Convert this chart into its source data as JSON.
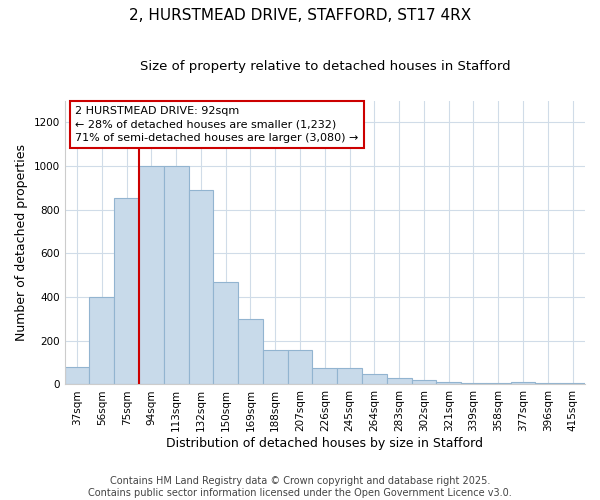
{
  "title": "2, HURSTMEAD DRIVE, STAFFORD, ST17 4RX",
  "subtitle": "Size of property relative to detached houses in Stafford",
  "xlabel": "Distribution of detached houses by size in Stafford",
  "ylabel": "Number of detached properties",
  "categories": [
    "37sqm",
    "56sqm",
    "75sqm",
    "94sqm",
    "113sqm",
    "132sqm",
    "150sqm",
    "169sqm",
    "188sqm",
    "207sqm",
    "226sqm",
    "245sqm",
    "264sqm",
    "283sqm",
    "302sqm",
    "321sqm",
    "339sqm",
    "358sqm",
    "377sqm",
    "396sqm",
    "415sqm"
  ],
  "values": [
    80,
    400,
    855,
    1000,
    1000,
    890,
    470,
    300,
    160,
    160,
    75,
    75,
    47,
    30,
    20,
    10,
    5,
    5,
    10,
    5,
    5
  ],
  "bar_color": "#c8daea",
  "bar_edgecolor": "#92b4d0",
  "ylim": [
    0,
    1300
  ],
  "yticks": [
    0,
    200,
    400,
    600,
    800,
    1000,
    1200
  ],
  "vline_x": 2.5,
  "vline_color": "#cc0000",
  "annotation_box_text": "2 HURSTMEAD DRIVE: 92sqm\n← 28% of detached houses are smaller (1,232)\n71% of semi-detached houses are larger (3,080) →",
  "box_edgecolor": "#cc0000",
  "footer_text": "Contains HM Land Registry data © Crown copyright and database right 2025.\nContains public sector information licensed under the Open Government Licence v3.0.",
  "background_color": "#ffffff",
  "plot_background": "#ffffff",
  "grid_color": "#d0dce8",
  "title_fontsize": 11,
  "subtitle_fontsize": 9.5,
  "axis_label_fontsize": 9,
  "tick_fontsize": 7.5,
  "annotation_fontsize": 8,
  "footer_fontsize": 7
}
